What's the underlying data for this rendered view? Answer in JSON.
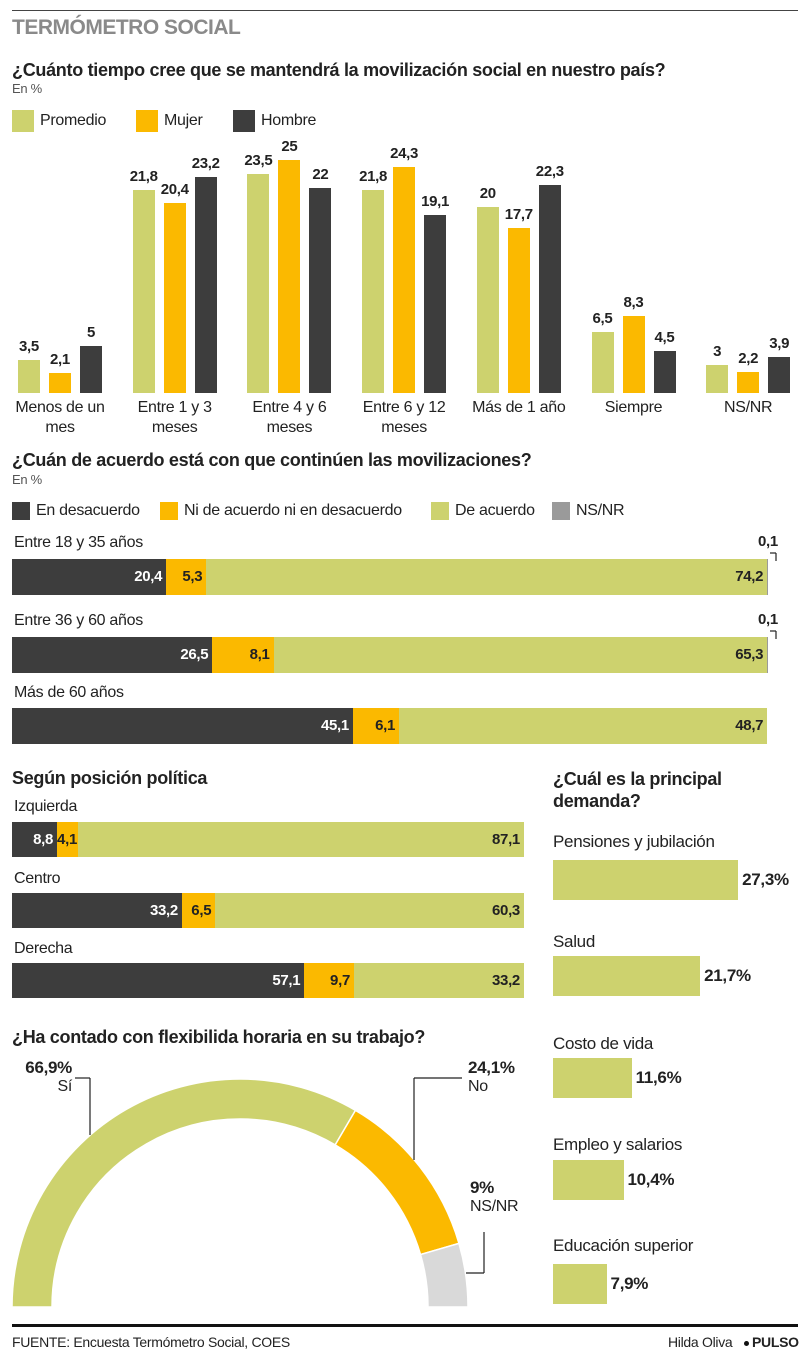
{
  "header": {
    "title": "TERMÓMETRO SOCIAL"
  },
  "chart_data": [
    {
      "type": "grouped_bar",
      "title": "¿Cuánto tiempo cree que se mantendrá la movilización social en nuestro país?",
      "subtitle": "En %",
      "categories": [
        "Menos de un mes",
        "Entre 1 y 3 meses",
        "Entre 4 y 6 meses",
        "Entre 6 y 12 meses",
        "Más de 1 año",
        "Siempre",
        "NS/NR"
      ],
      "series": [
        {
          "name": "Promedio",
          "color": "#cdd26e",
          "values": [
            3.5,
            21.8,
            23.5,
            21.8,
            20,
            6.5,
            3
          ],
          "value_labels": [
            "3,5",
            "21,8",
            "23,5",
            "21,8",
            "20",
            "6,5",
            "3"
          ]
        },
        {
          "name": "Mujer",
          "color": "#fbb900",
          "values": [
            2.1,
            20.4,
            25,
            24.3,
            17.7,
            8.3,
            2.2
          ],
          "value_labels": [
            "2,1",
            "20,4",
            "25",
            "24,3",
            "17,7",
            "8,3",
            "2,2"
          ]
        },
        {
          "name": "Hombre",
          "color": "#3d3d3d",
          "values": [
            5,
            23.2,
            22,
            19.1,
            22.3,
            4.5,
            3.9
          ],
          "value_labels": [
            "5",
            "23,2",
            "22",
            "19,1",
            "22,3",
            "4,5",
            "3,9"
          ]
        }
      ]
    },
    {
      "type": "stacked_barh",
      "title": "¿Cuán de acuerdo está con que continúen las movilizaciones?",
      "subtitle": "En %",
      "categories": [
        "Entre 18 y 35 años",
        "Entre 36 y 60 años",
        "Más de 60 años"
      ],
      "series": [
        {
          "name": "En desacuerdo",
          "color": "#3d3d3d",
          "values": [
            20.4,
            26.5,
            45.1
          ],
          "value_labels": [
            "20,4",
            "26,5",
            "45,1"
          ]
        },
        {
          "name": "Ni de acuerdo ni en desacuerdo",
          "color": "#fbb900",
          "values": [
            5.3,
            8.1,
            6.1
          ],
          "value_labels": [
            "5,3",
            "8,1",
            "6,1"
          ]
        },
        {
          "name": "De acuerdo",
          "color": "#cdd26e",
          "values": [
            74.2,
            65.3,
            48.7
          ],
          "value_labels": [
            "74,2",
            "65,3",
            "48,7"
          ]
        },
        {
          "name": "NS/NR",
          "color": "#9a9a9a",
          "values": [
            0.1,
            0.1,
            null
          ],
          "value_labels": [
            "0,1",
            "0,1",
            null
          ]
        }
      ]
    },
    {
      "type": "stacked_barh",
      "title": "Según posición política",
      "categories": [
        "Izquierda",
        "Centro",
        "Derecha"
      ],
      "series": [
        {
          "color": "#3d3d3d",
          "values": [
            8.8,
            33.2,
            57.1
          ],
          "value_labels": [
            "8,8",
            "33,2",
            "57,1"
          ]
        },
        {
          "color": "#fbb900",
          "values": [
            4.1,
            6.5,
            9.7
          ],
          "value_labels": [
            "4,1",
            "6,5",
            "9,7"
          ]
        },
        {
          "color": "#cdd26e",
          "values": [
            87.1,
            60.3,
            33.2
          ],
          "value_labels": [
            "87,1",
            "60,3",
            "33,2"
          ]
        }
      ]
    },
    {
      "type": "barh",
      "title": "¿Cuál es la principal demanda?",
      "categories": [
        "Pensiones y jubilación",
        "Salud",
        "Costo de vida",
        "Empleo y salarios",
        "Educación superior"
      ],
      "values": [
        27.3,
        21.7,
        11.6,
        10.4,
        7.9
      ],
      "value_labels": [
        "27,3%",
        "21,7%",
        "11,6%",
        "10,4%",
        "7,9%"
      ],
      "color": "#cdd26e"
    },
    {
      "type": "semi_donut",
      "title": "¿Ha contado con flexibilida horaria en su trabajo?",
      "categories": [
        "Sí",
        "No",
        "NS/NR"
      ],
      "values": [
        66.9,
        24.1,
        9
      ],
      "value_labels": [
        "66,9%",
        "24,1%",
        "9%"
      ],
      "colors": [
        "#cdd26e",
        "#fbb900",
        "#d9d9d9"
      ]
    }
  ],
  "footer": {
    "source": "FUENTE: Encuesta Termómetro Social, COES",
    "author": "Hilda Oliva",
    "brand": "PULSO"
  }
}
